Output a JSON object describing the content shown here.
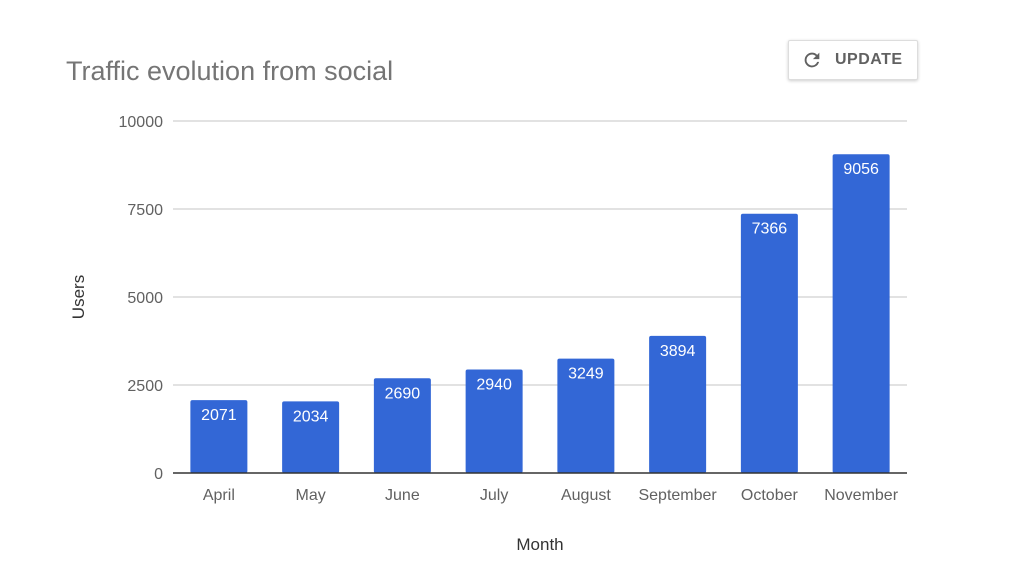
{
  "update_button": {
    "label": "UPDATE",
    "icon": "refresh-icon"
  },
  "chart_data": {
    "type": "bar",
    "title": "Traffic evolution from social",
    "xlabel": "Month",
    "ylabel": "Users",
    "categories": [
      "April",
      "May",
      "June",
      "July",
      "August",
      "September",
      "October",
      "November"
    ],
    "values": [
      2071,
      2034,
      2690,
      2940,
      3249,
      3894,
      7366,
      9056
    ],
    "ylim": [
      0,
      10000
    ],
    "yticks": [
      0,
      2500,
      5000,
      7500,
      10000
    ],
    "grid": true,
    "data_labels": true,
    "bar_color": "#3367d6"
  }
}
